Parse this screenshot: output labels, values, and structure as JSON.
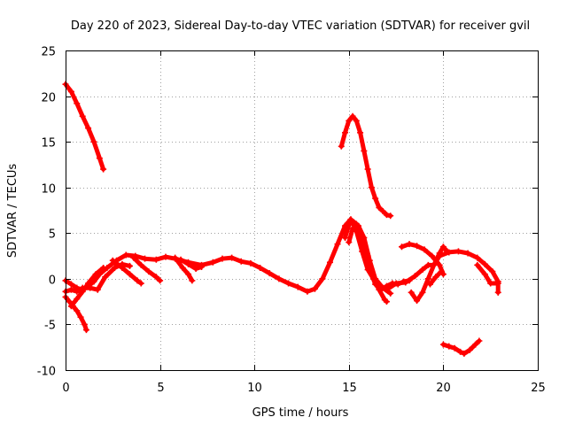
{
  "chart_data": {
    "type": "scatter",
    "title": "Day 220 of 2023, Sidereal Day-to-day VTEC variation (SDTVAR) for receiver gvil",
    "xlabel": "GPS time / hours",
    "ylabel": "SDTVAR / TECUs",
    "xlim": [
      0,
      25
    ],
    "ylim": [
      -10,
      25
    ],
    "xticks": [
      "0",
      "5",
      "10",
      "15",
      "20",
      "25"
    ],
    "yticks": [
      "25",
      "20",
      "15",
      "10",
      "5",
      "0",
      "-5",
      "-10"
    ],
    "grid": true,
    "series": [
      {
        "name": "seg1",
        "color": "#ff0000",
        "points": [
          [
            0,
            21.3
          ],
          [
            0.3,
            20.5
          ],
          [
            0.6,
            19.2
          ],
          [
            0.9,
            17.8
          ],
          [
            1.2,
            16.5
          ],
          [
            1.5,
            15.0
          ],
          [
            1.8,
            13.2
          ],
          [
            2.0,
            12.0
          ]
        ]
      },
      {
        "name": "seg2",
        "color": "#ff0000",
        "points": [
          [
            0,
            -0.2
          ],
          [
            0.3,
            -0.6
          ],
          [
            0.6,
            -1.0
          ],
          [
            0.9,
            -1.2
          ],
          [
            1.2,
            -0.8
          ],
          [
            1.5,
            -0.3
          ],
          [
            1.8,
            0.5
          ],
          [
            2.2,
            1.2
          ],
          [
            2.7,
            2.0
          ],
          [
            3.2,
            2.6
          ],
          [
            3.7,
            2.5
          ],
          [
            4.2,
            2.2
          ],
          [
            4.8,
            2.1
          ],
          [
            5.3,
            2.4
          ],
          [
            5.8,
            2.2
          ],
          [
            6.5,
            1.8
          ],
          [
            7.2,
            1.5
          ],
          [
            7.8,
            1.8
          ],
          [
            8.3,
            2.2
          ],
          [
            8.8,
            2.3
          ],
          [
            9.3,
            1.9
          ],
          [
            9.8,
            1.7
          ],
          [
            10.3,
            1.2
          ],
          [
            10.8,
            0.6
          ],
          [
            11.3,
            0.0
          ],
          [
            11.8,
            -0.5
          ],
          [
            12.3,
            -0.9
          ],
          [
            12.8,
            -1.4
          ],
          [
            13.2,
            -1.1
          ],
          [
            13.6,
            0.0
          ],
          [
            14.0,
            1.8
          ],
          [
            14.4,
            3.8
          ],
          [
            14.8,
            5.8
          ],
          [
            15.1,
            6.5
          ],
          [
            15.4,
            6.0
          ],
          [
            15.7,
            4.5
          ],
          [
            16.0,
            2.5
          ],
          [
            16.2,
            0.5
          ],
          [
            16.4,
            -0.6
          ],
          [
            16.7,
            -1.2
          ],
          [
            17.0,
            -0.8
          ],
          [
            17.3,
            -0.5
          ],
          [
            17.6,
            -0.6
          ],
          [
            17.9,
            -0.3
          ],
          [
            18.2,
            -0.2
          ]
        ]
      },
      {
        "name": "seg3",
        "color": "#ff0000",
        "points": [
          [
            0,
            -1.4
          ],
          [
            0.3,
            -1.2
          ],
          [
            0.6,
            -1.4
          ],
          [
            0.9,
            -1.0
          ],
          [
            1.3,
            -1.0
          ],
          [
            1.7,
            -1.2
          ],
          [
            2.1,
            0.2
          ],
          [
            2.6,
            1.2
          ],
          [
            3.0,
            1.6
          ],
          [
            3.4,
            1.4
          ]
        ]
      },
      {
        "name": "seg4",
        "color": "#ff0000",
        "points": [
          [
            0,
            -2.0
          ],
          [
            0.2,
            -2.5
          ],
          [
            0.4,
            -3.0
          ],
          [
            0.6,
            -3.5
          ],
          [
            0.8,
            -4.2
          ],
          [
            1.0,
            -5.0
          ],
          [
            1.1,
            -5.6
          ]
        ]
      },
      {
        "name": "seg5",
        "color": "#ff0000",
        "points": [
          [
            0.3,
            -3.0
          ],
          [
            0.6,
            -2.2
          ],
          [
            0.9,
            -1.4
          ],
          [
            1.2,
            -0.5
          ],
          [
            1.6,
            0.5
          ],
          [
            2.0,
            1.2
          ]
        ]
      },
      {
        "name": "seg6",
        "color": "#ff0000",
        "points": [
          [
            2.5,
            2.0
          ],
          [
            3.0,
            1.2
          ],
          [
            3.4,
            0.5
          ],
          [
            3.8,
            -0.2
          ],
          [
            4.0,
            -0.5
          ]
        ]
      },
      {
        "name": "seg7",
        "color": "#ff0000",
        "points": [
          [
            3.6,
            2.3
          ],
          [
            4.0,
            1.5
          ],
          [
            4.4,
            0.8
          ],
          [
            4.8,
            0.2
          ],
          [
            5.0,
            -0.2
          ]
        ]
      },
      {
        "name": "seg8",
        "color": "#ff0000",
        "points": [
          [
            5.8,
            2.3
          ],
          [
            6.2,
            1.2
          ],
          [
            6.5,
            0.5
          ],
          [
            6.7,
            -0.2
          ]
        ]
      },
      {
        "name": "seg9",
        "color": "#ff0000",
        "points": [
          [
            6.1,
            2.1
          ],
          [
            6.5,
            1.6
          ],
          [
            6.9,
            1.1
          ],
          [
            7.2,
            1.3
          ]
        ]
      },
      {
        "name": "seg10",
        "color": "#ff0000",
        "points": [
          [
            14.6,
            14.5
          ],
          [
            14.8,
            16.0
          ],
          [
            15.0,
            17.3
          ],
          [
            15.2,
            17.8
          ],
          [
            15.4,
            17.3
          ],
          [
            15.6,
            16.0
          ],
          [
            15.8,
            14.0
          ],
          [
            16.0,
            12.0
          ],
          [
            16.2,
            10.0
          ],
          [
            16.4,
            8.8
          ],
          [
            16.6,
            7.8
          ],
          [
            16.8,
            7.4
          ],
          [
            17.0,
            7.0
          ],
          [
            17.2,
            6.9
          ]
        ]
      },
      {
        "name": "seg11",
        "color": "#ff0000",
        "points": [
          [
            14.8,
            4.5
          ],
          [
            15.1,
            6.5
          ],
          [
            15.4,
            5.2
          ],
          [
            15.7,
            3.0
          ],
          [
            16.0,
            1.0
          ],
          [
            16.3,
            0.0
          ],
          [
            16.6,
            -1.2
          ],
          [
            16.9,
            -2.3
          ],
          [
            17.0,
            -2.5
          ]
        ]
      },
      {
        "name": "seg12",
        "color": "#ff0000",
        "points": [
          [
            15.0,
            4.0
          ],
          [
            15.2,
            5.5
          ],
          [
            15.5,
            5.8
          ],
          [
            15.8,
            4.5
          ],
          [
            16.1,
            2.0
          ],
          [
            16.4,
            0.0
          ],
          [
            16.8,
            -1.0
          ],
          [
            17.2,
            -1.6
          ]
        ]
      },
      {
        "name": "seg13",
        "color": "#ff0000",
        "points": [
          [
            17.0,
            -1.2
          ],
          [
            17.5,
            -0.5
          ],
          [
            18.0,
            -0.4
          ],
          [
            18.5,
            0.3
          ],
          [
            18.9,
            1.0
          ],
          [
            19.2,
            1.5
          ],
          [
            19.5,
            1.5
          ],
          [
            19.8,
            2.5
          ],
          [
            20.3,
            2.9
          ],
          [
            20.8,
            3.0
          ],
          [
            21.3,
            2.8
          ],
          [
            21.8,
            2.3
          ],
          [
            22.2,
            1.6
          ],
          [
            22.6,
            0.8
          ],
          [
            22.9,
            -0.3
          ],
          [
            22.9,
            -1.5
          ]
        ]
      },
      {
        "name": "seg14",
        "color": "#ff0000",
        "points": [
          [
            17.8,
            3.5
          ],
          [
            18.2,
            3.8
          ],
          [
            18.6,
            3.6
          ],
          [
            19.0,
            3.2
          ],
          [
            19.4,
            2.5
          ],
          [
            19.8,
            1.5
          ],
          [
            20.0,
            0.5
          ]
        ]
      },
      {
        "name": "seg15",
        "color": "#ff0000",
        "points": [
          [
            18.3,
            -1.5
          ],
          [
            18.6,
            -2.4
          ],
          [
            18.9,
            -1.5
          ],
          [
            19.2,
            0.0
          ],
          [
            19.5,
            1.5
          ],
          [
            19.8,
            2.8
          ],
          [
            20.0,
            3.5
          ],
          [
            20.2,
            3.0
          ]
        ]
      },
      {
        "name": "seg16",
        "color": "#ff0000",
        "points": [
          [
            19.3,
            -0.6
          ],
          [
            19.6,
            0.2
          ],
          [
            19.9,
            0.8
          ]
        ]
      },
      {
        "name": "seg17",
        "color": "#ff0000",
        "points": [
          [
            20.0,
            -7.2
          ],
          [
            20.3,
            -7.4
          ],
          [
            20.6,
            -7.6
          ],
          [
            20.9,
            -8.0
          ],
          [
            21.1,
            -8.2
          ],
          [
            21.4,
            -7.8
          ],
          [
            21.7,
            -7.2
          ],
          [
            21.9,
            -6.8
          ]
        ]
      },
      {
        "name": "seg18",
        "color": "#ff0000",
        "points": [
          [
            21.8,
            1.5
          ],
          [
            22.2,
            0.5
          ],
          [
            22.5,
            -0.5
          ],
          [
            22.9,
            -0.5
          ]
        ]
      }
    ]
  }
}
